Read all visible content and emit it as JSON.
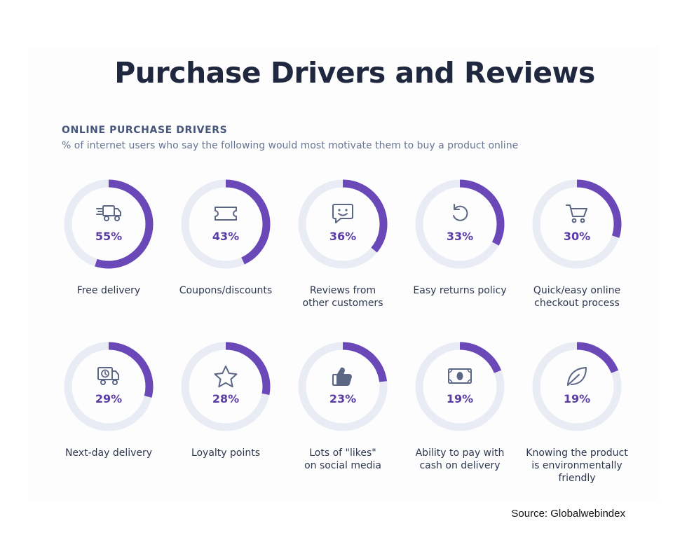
{
  "title": "Purchase Drivers and Reviews",
  "section_title": "ONLINE PURCHASE DRIVERS",
  "subtitle": "% of internet users who say the following would most motivate them to buy a product online",
  "source": "Source: Globalwebindex",
  "colors": {
    "accent": "#6a48b8",
    "track": "#e9ebf5",
    "icon": "#5c6685"
  },
  "chart_data": {
    "type": "pie",
    "unit": "%",
    "items": [
      {
        "label_lines": [
          "Free delivery"
        ],
        "value": 55,
        "display": "55%",
        "icon": "truck-icon"
      },
      {
        "label_lines": [
          "Coupons/discounts"
        ],
        "value": 43,
        "display": "43%",
        "icon": "ticket-icon"
      },
      {
        "label_lines": [
          "Reviews from",
          "other customers"
        ],
        "value": 36,
        "display": "36%",
        "icon": "chat-smile-icon"
      },
      {
        "label_lines": [
          "Easy returns policy"
        ],
        "value": 33,
        "display": "33%",
        "icon": "return-arrow-icon"
      },
      {
        "label_lines": [
          "Quick/easy online",
          "checkout process"
        ],
        "value": 30,
        "display": "30%",
        "icon": "cart-icon"
      },
      {
        "label_lines": [
          "Next-day delivery"
        ],
        "value": 29,
        "display": "29%",
        "icon": "clock-truck-icon"
      },
      {
        "label_lines": [
          "Loyalty points"
        ],
        "value": 28,
        "display": "28%",
        "icon": "star-icon"
      },
      {
        "label_lines": [
          "Lots of \"likes\"",
          "on social media"
        ],
        "value": 23,
        "display": "23%",
        "icon": "thumbs-up-icon"
      },
      {
        "label_lines": [
          "Ability to pay with",
          "cash on delivery"
        ],
        "value": 19,
        "display": "19%",
        "icon": "cash-icon"
      },
      {
        "label_lines": [
          "Knowing the product",
          "is environmentally",
          "friendly"
        ],
        "value": 19,
        "display": "19%",
        "icon": "leaf-icon"
      }
    ]
  }
}
